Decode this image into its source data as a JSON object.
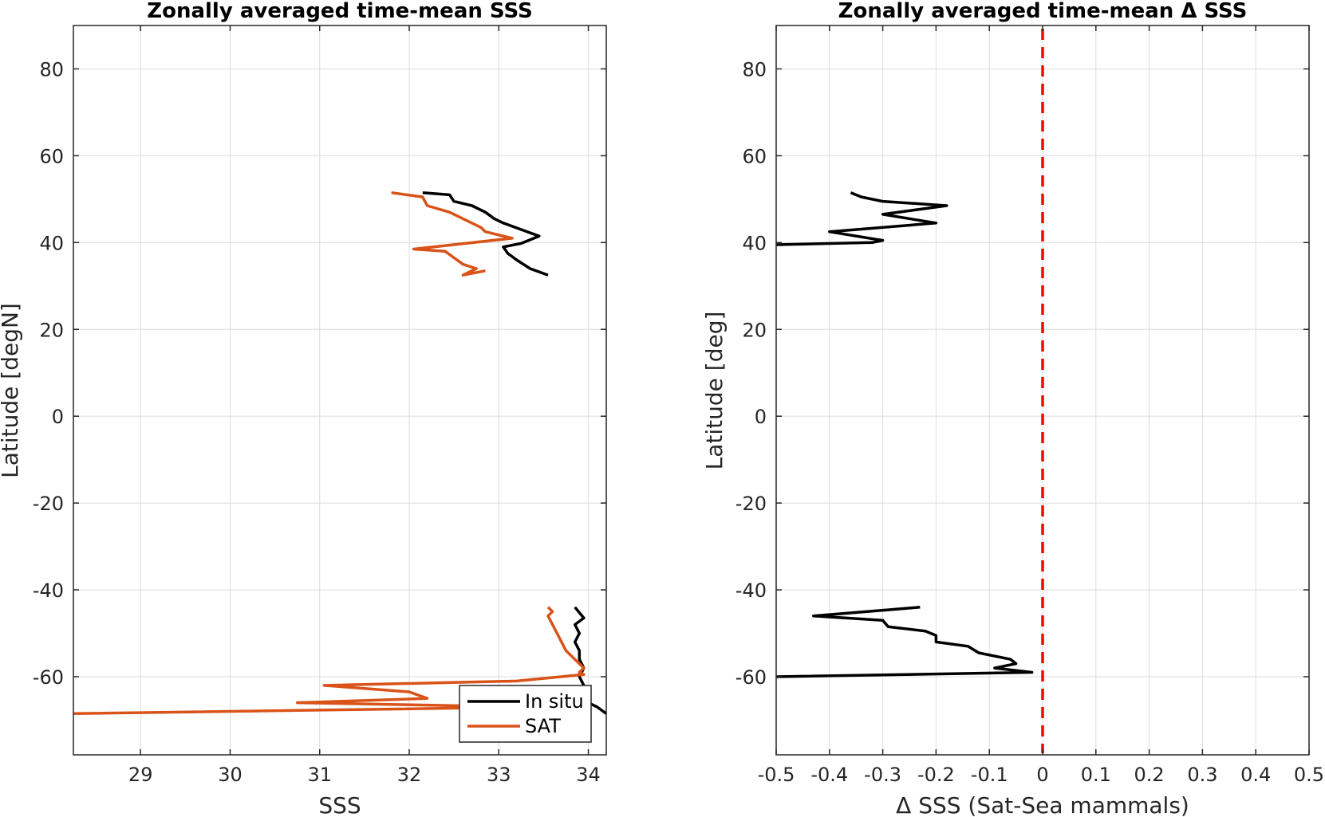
{
  "chart_data": [
    {
      "type": "line",
      "title": "Zonally averaged time-mean SSS",
      "xlabel": "SSS",
      "ylabel": "Latitude [degN]",
      "xlim": [
        28.25,
        34.2
      ],
      "ylim": [
        -78,
        90
      ],
      "x_ticks": [
        29,
        30,
        31,
        32,
        33,
        34
      ],
      "y_ticks": [
        -60,
        -40,
        -20,
        0,
        20,
        40,
        60,
        80
      ],
      "grid": true,
      "legend_position": "bottom-right",
      "series": [
        {
          "name": "In situ",
          "color": "#000000",
          "segments": [
            [
              [
                32.15,
                51.5
              ],
              [
                32.45,
                51
              ],
              [
                32.5,
                49.5
              ],
              [
                32.7,
                48.5
              ],
              [
                32.85,
                47
              ],
              [
                32.95,
                45.5
              ],
              [
                33.05,
                44.5
              ],
              [
                33.25,
                43
              ],
              [
                33.45,
                41.5
              ],
              [
                33.25,
                39.8
              ],
              [
                33.05,
                39
              ],
              [
                33.1,
                37.5
              ],
              [
                33.2,
                36
              ],
              [
                33.35,
                34
              ],
              [
                33.55,
                32.5
              ]
            ],
            [
              [
                33.85,
                -44
              ],
              [
                33.95,
                -46.5
              ],
              [
                33.85,
                -48
              ],
              [
                33.9,
                -50
              ],
              [
                33.85,
                -52
              ],
              [
                33.9,
                -54
              ],
              [
                33.9,
                -56
              ],
              [
                33.95,
                -58
              ],
              [
                33.9,
                -60
              ],
              [
                33.95,
                -62
              ],
              [
                33.9,
                -64
              ],
              [
                34.0,
                -66
              ],
              [
                34.1,
                -67
              ],
              [
                34.2,
                -68.5
              ]
            ]
          ]
        },
        {
          "name": "SAT",
          "color": "#d95319",
          "segments": [
            [
              [
                31.8,
                51.5
              ],
              [
                32.15,
                50.5
              ],
              [
                32.2,
                48.5
              ],
              [
                32.45,
                47
              ],
              [
                32.6,
                45.5
              ],
              [
                32.8,
                43.5
              ],
              [
                32.85,
                42.5
              ],
              [
                33.15,
                41
              ],
              [
                32.05,
                38.5
              ],
              [
                32.4,
                38
              ],
              [
                32.5,
                36.5
              ],
              [
                32.6,
                35
              ],
              [
                32.75,
                34
              ],
              [
                32.6,
                32.5
              ],
              [
                32.85,
                33.5
              ]
            ],
            [
              [
                33.55,
                -44
              ],
              [
                33.6,
                -45
              ],
              [
                33.55,
                -46
              ],
              [
                33.6,
                -48
              ],
              [
                33.65,
                -50
              ],
              [
                33.7,
                -52
              ],
              [
                33.75,
                -54
              ],
              [
                33.85,
                -56
              ],
              [
                33.95,
                -58
              ],
              [
                33.9,
                -59
              ],
              [
                33.95,
                -59.5
              ],
              [
                33.2,
                -61
              ],
              [
                31.05,
                -62
              ],
              [
                32.0,
                -63.5
              ],
              [
                32.2,
                -65
              ],
              [
                30.75,
                -66
              ],
              [
                33.35,
                -67
              ],
              [
                28.25,
                -68.5
              ]
            ]
          ]
        }
      ]
    },
    {
      "type": "line",
      "title": "Zonally averaged time-mean Δ SSS",
      "xlabel": "Δ SSS (Sat-Sea mammals)",
      "ylabel": "Latitude [deg]",
      "xlim": [
        -0.5,
        0.5
      ],
      "ylim": [
        -78,
        90
      ],
      "x_ticks": [
        -0.5,
        -0.4,
        -0.3,
        -0.2,
        -0.1,
        0,
        0.1,
        0.2,
        0.3,
        0.4,
        0.5
      ],
      "y_ticks": [
        -60,
        -40,
        -20,
        0,
        20,
        40,
        60,
        80
      ],
      "grid": true,
      "reference_line": {
        "x": 0,
        "color": "#ff0000",
        "style": "dashed"
      },
      "series": [
        {
          "color": "#000000",
          "segments": [
            [
              [
                -0.36,
                51.5
              ],
              [
                -0.34,
                50.5
              ],
              [
                -0.3,
                49.5
              ],
              [
                -0.18,
                48.5
              ],
              [
                -0.3,
                46.5
              ],
              [
                -0.2,
                44.5
              ],
              [
                -0.4,
                42.5
              ],
              [
                -0.3,
                40.5
              ],
              [
                -0.32,
                40
              ],
              [
                -0.5,
                39.5
              ]
            ],
            [
              [
                -0.23,
                -44
              ],
              [
                -0.43,
                -46
              ],
              [
                -0.3,
                -47
              ],
              [
                -0.29,
                -48.5
              ],
              [
                -0.22,
                -49.5
              ],
              [
                -0.2,
                -50.5
              ],
              [
                -0.2,
                -52
              ],
              [
                -0.14,
                -53
              ],
              [
                -0.12,
                -54.5
              ],
              [
                -0.06,
                -56
              ],
              [
                -0.05,
                -57
              ],
              [
                -0.09,
                -58
              ],
              [
                -0.02,
                -59
              ],
              [
                -0.5,
                -60
              ]
            ]
          ]
        }
      ]
    }
  ]
}
